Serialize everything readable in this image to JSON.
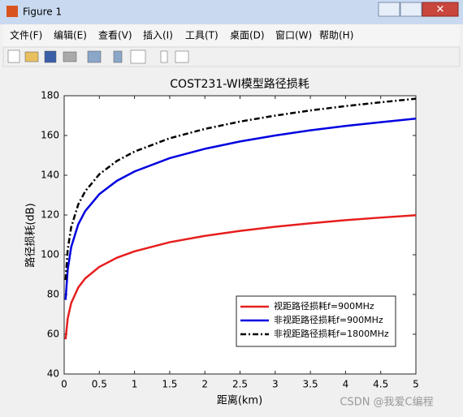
{
  "window": {
    "title": "Figure 1"
  },
  "menu": [
    "文件(F)",
    "编辑(E)",
    "查看(V)",
    "插入(I)",
    "工具(T)",
    "桌面(D)",
    "窗口(W)",
    "帮助(H)"
  ],
  "watermark": "CSDN @我爱C编程",
  "chart_data": {
    "type": "line",
    "title": "COST231-WI模型路径损耗",
    "xlabel": "距离(km)",
    "ylabel": "路径损耗(dB)",
    "x": [
      0.02,
      0.05,
      0.1,
      0.2,
      0.3,
      0.5,
      0.75,
      1,
      1.5,
      2,
      2.5,
      3,
      3.5,
      4,
      4.5,
      5
    ],
    "series": [
      {
        "name": "视距路径损耗f=900MHz",
        "color": "#e61e1e",
        "dash": "solid",
        "values": [
          57.5,
          67.9,
          75.7,
          83.5,
          88.1,
          93.9,
          98.5,
          101.7,
          106.3,
          109.5,
          112.0,
          114.1,
          115.8,
          117.4,
          118.7,
          119.9
        ]
      },
      {
        "name": "非视距路径损耗f=900MHz",
        "color": "#0000e0",
        "dash": "solid",
        "values": [
          77.3,
          92.5,
          103.9,
          115.3,
          122.0,
          130.5,
          137.2,
          141.9,
          148.6,
          153.3,
          157.0,
          160.0,
          162.6,
          164.8,
          166.7,
          168.5
        ]
      },
      {
        "name": "非视距路径损耗f=1800MHz",
        "color": "#000000",
        "dash": "dashdot",
        "values": [
          87.3,
          102.5,
          113.9,
          125.3,
          132.0,
          140.5,
          147.2,
          151.9,
          158.6,
          163.3,
          167.0,
          170.0,
          172.6,
          174.8,
          176.7,
          178.5
        ]
      }
    ],
    "xlim": [
      0,
      5
    ],
    "xticks": [
      0,
      0.5,
      1,
      1.5,
      2,
      2.5,
      3,
      3.5,
      4,
      4.5,
      5
    ],
    "ylim": [
      40,
      180
    ],
    "yticks": [
      40,
      60,
      80,
      100,
      120,
      140,
      160,
      180
    ],
    "legend": "lower right"
  }
}
